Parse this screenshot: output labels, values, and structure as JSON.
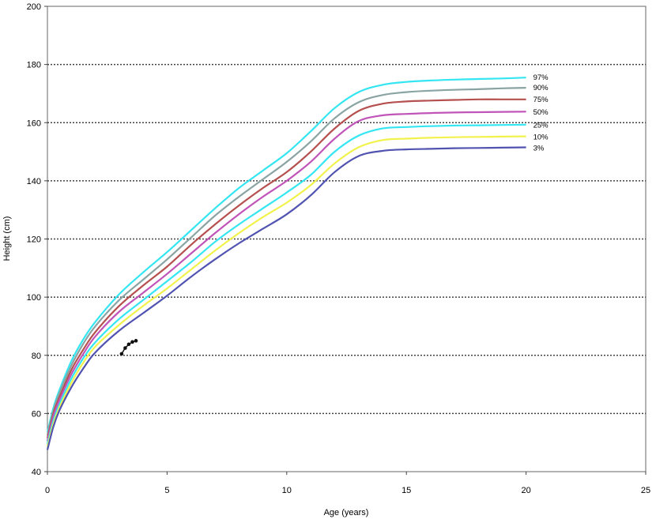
{
  "chart_data": {
    "type": "line",
    "title": "",
    "xlabel": "Age (years)",
    "ylabel": "Height (cm)",
    "xlim": [
      0,
      25
    ],
    "ylim": [
      40,
      200
    ],
    "x_ticks": [
      0,
      5,
      10,
      15,
      20,
      25
    ],
    "y_ticks": [
      40,
      60,
      80,
      100,
      120,
      140,
      160,
      180,
      200
    ],
    "grid": "horizontal dotted",
    "legend": "inline labels at right end of curves",
    "x": [
      0,
      0.25,
      0.5,
      1,
      1.5,
      2,
      3,
      4,
      5,
      6,
      7,
      8,
      9,
      10,
      11,
      12,
      13,
      14,
      15,
      16,
      17,
      18,
      19,
      20
    ],
    "series": [
      {
        "name": "97%",
        "color": "#33e6f2",
        "values": [
          53.5,
          62,
          68,
          78,
          85.5,
          91.5,
          101,
          108.5,
          115.5,
          123,
          130.5,
          137.5,
          143.5,
          149.5,
          157,
          165,
          170.5,
          173,
          174,
          174.5,
          174.8,
          175,
          175.2,
          175.5
        ]
      },
      {
        "name": "90%",
        "color": "#8aa3a3",
        "values": [
          52.5,
          61,
          67,
          76.5,
          84,
          90,
          99,
          106,
          113,
          120.5,
          128,
          134.5,
          140.5,
          146.5,
          153.5,
          161.5,
          167,
          169.5,
          170.5,
          171,
          171.3,
          171.5,
          171.8,
          172
        ]
      },
      {
        "name": "75%",
        "color": "#b5504f",
        "values": [
          51.5,
          60,
          65.5,
          75,
          82,
          88,
          97,
          104,
          110.5,
          118,
          125,
          131.5,
          137.5,
          143,
          150,
          158,
          164,
          166.5,
          167.3,
          167.6,
          167.8,
          168,
          168,
          168
        ]
      },
      {
        "name": "50%",
        "color": "#c054b8",
        "values": [
          50.5,
          59,
          64.5,
          73.5,
          80.5,
          86.5,
          95,
          101.5,
          108,
          115,
          122,
          128.5,
          134.5,
          140,
          146.5,
          154.5,
          160.5,
          162.5,
          163,
          163.3,
          163.5,
          163.6,
          163.7,
          163.8
        ]
      },
      {
        "name": "25%",
        "color": "#33e6f2",
        "values": [
          49.5,
          57.5,
          63,
          72,
          79,
          84.5,
          92.5,
          99,
          105.5,
          112,
          119,
          125,
          130.5,
          136,
          142,
          150,
          155.5,
          158,
          158.5,
          158.8,
          159,
          159.1,
          159.2,
          159.3
        ]
      },
      {
        "name": "10%",
        "color": "#f2f24d",
        "values": [
          48.5,
          56.5,
          62,
          70.5,
          77.5,
          83,
          90.5,
          97,
          103,
          109.5,
          116,
          122,
          127.5,
          132.5,
          138.5,
          146,
          151.5,
          154,
          154.5,
          154.8,
          155,
          155.1,
          155.2,
          155.3
        ]
      },
      {
        "name": "3%",
        "color": "#5053b0",
        "values": [
          47.5,
          55.5,
          61,
          69,
          75.5,
          81,
          88.5,
          94.5,
          100.5,
          107,
          113,
          118.5,
          123.5,
          128.5,
          135,
          143,
          148.5,
          150.3,
          150.8,
          151,
          151.2,
          151.3,
          151.4,
          151.5
        ]
      }
    ],
    "observed": {
      "name": "",
      "color": "#111111",
      "points": [
        [
          3.1,
          80.5
        ],
        [
          3.25,
          82.5
        ],
        [
          3.4,
          83.8
        ],
        [
          3.55,
          84.6
        ],
        [
          3.7,
          85
        ]
      ]
    }
  }
}
